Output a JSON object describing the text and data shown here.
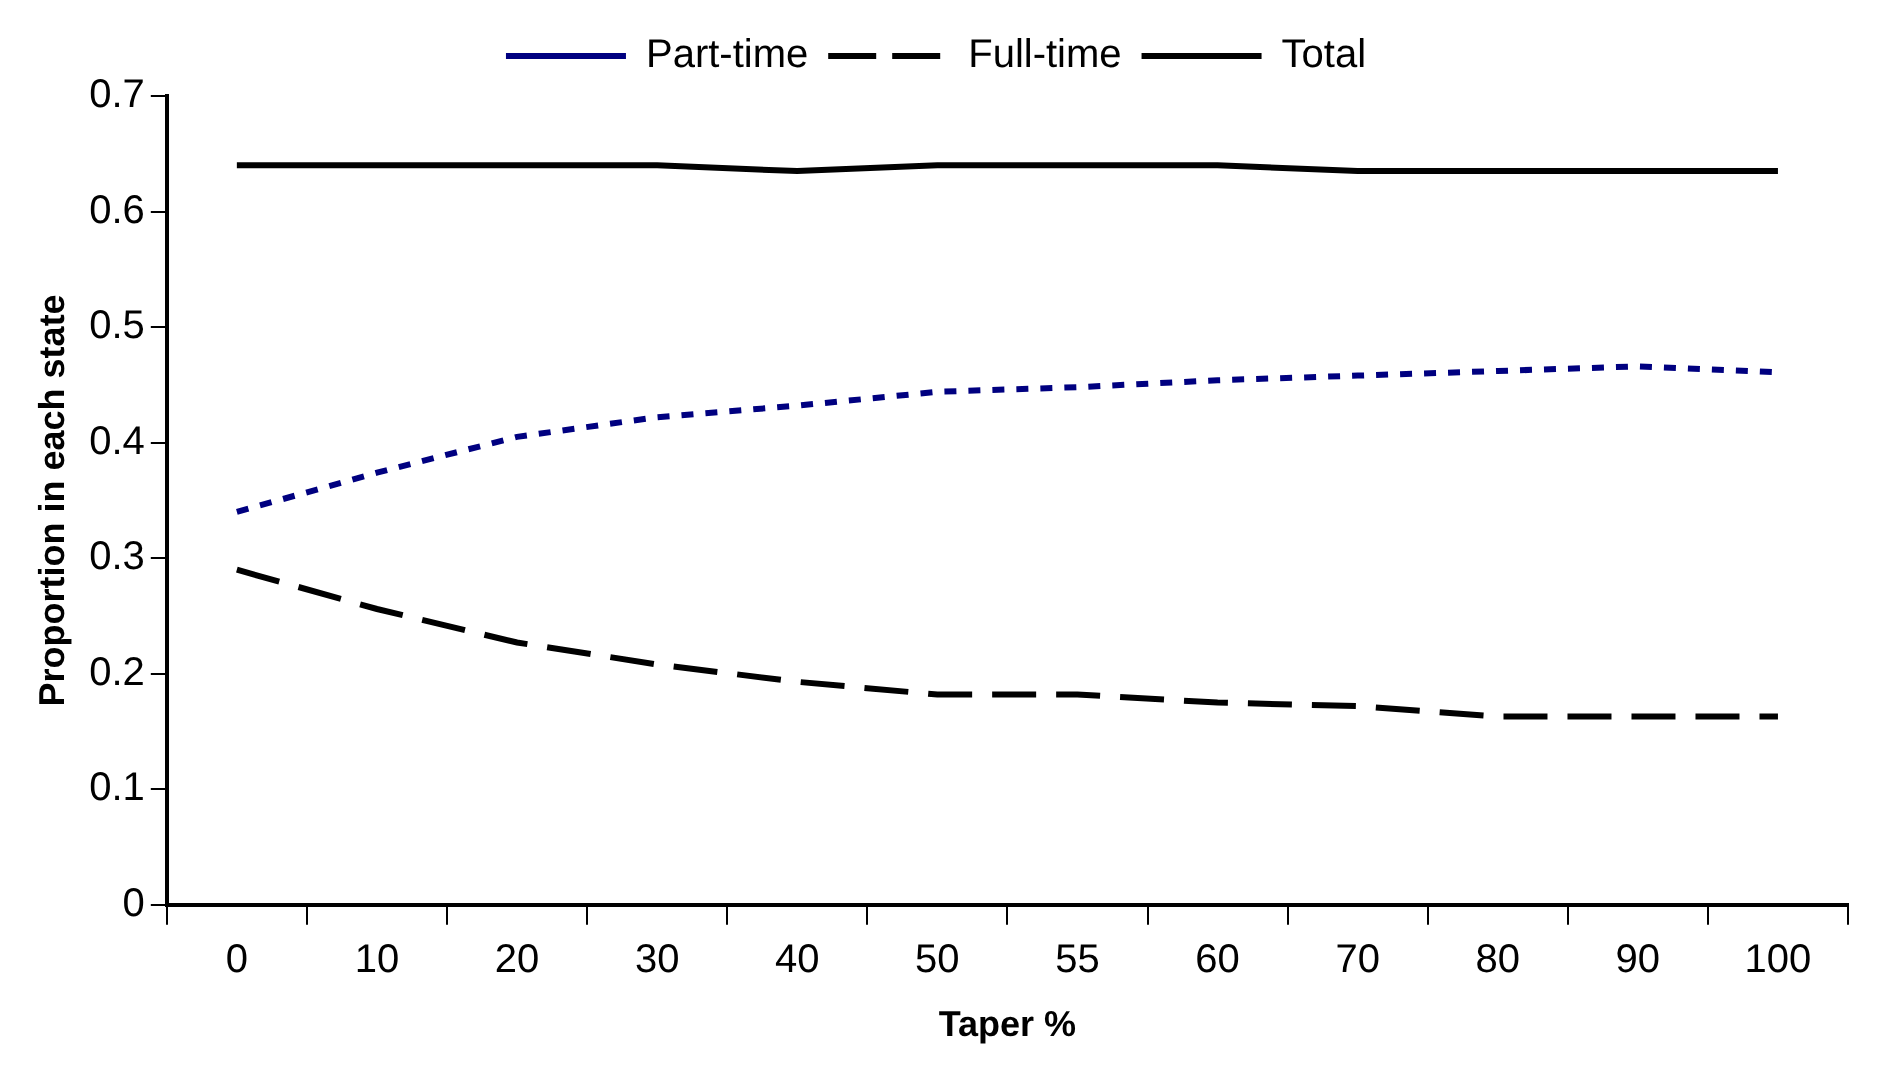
{
  "chart_data": {
    "type": "line",
    "xlabel": "Taper %",
    "ylabel": "Proportion in each state",
    "categories": [
      "0",
      "10",
      "20",
      "30",
      "40",
      "50",
      "55",
      "60",
      "70",
      "80",
      "90",
      "100"
    ],
    "series": [
      {
        "name": "Part-time",
        "color": "#000080",
        "line_style": "dotted",
        "values": [
          0.34,
          0.374,
          0.405,
          0.422,
          0.432,
          0.444,
          0.448,
          0.454,
          0.458,
          0.462,
          0.466,
          0.461
        ]
      },
      {
        "name": "Full-time",
        "color": "#000000",
        "line_style": "dashed",
        "values": [
          0.29,
          0.256,
          0.227,
          0.208,
          0.193,
          0.182,
          0.182,
          0.175,
          0.172,
          0.163,
          0.163,
          0.163
        ]
      },
      {
        "name": "Total",
        "color": "#000000",
        "line_style": "solid",
        "values": [
          0.64,
          0.64,
          0.64,
          0.64,
          0.635,
          0.64,
          0.64,
          0.64,
          0.635,
          0.635,
          0.635,
          0.635
        ]
      }
    ],
    "ylim": [
      0,
      0.7
    ],
    "yticks": [
      0,
      0.1,
      0.2,
      0.3,
      0.4,
      0.5,
      0.6,
      0.7
    ],
    "grid": false,
    "legend": "top",
    "marker": "none"
  }
}
